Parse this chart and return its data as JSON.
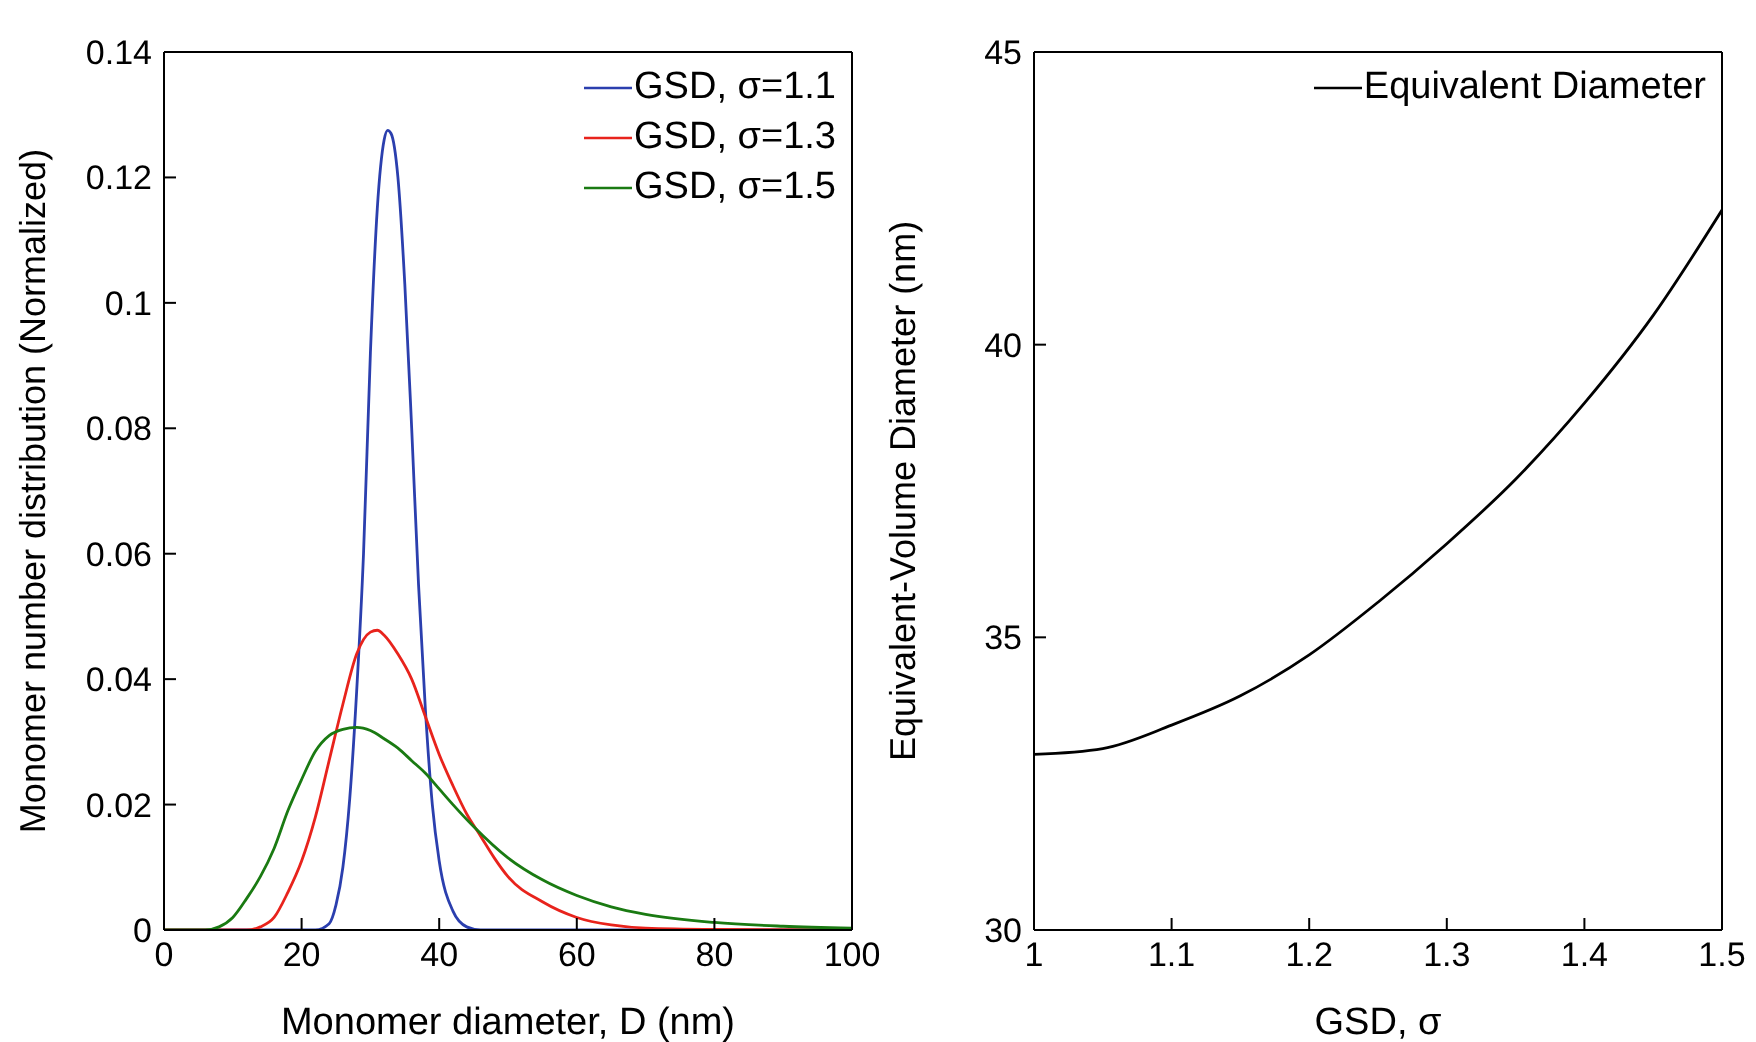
{
  "chart_data": [
    {
      "type": "line",
      "xlabel": "Monomer diameter, D (nm)",
      "ylabel": "Monomer number distribution (Normalized)",
      "xlim": [
        0,
        100
      ],
      "xticks": [
        0,
        20,
        40,
        60,
        80,
        100
      ],
      "ylim": [
        0,
        0.14
      ],
      "yticks": [
        0,
        0.02,
        0.04,
        0.06,
        0.08,
        0.1,
        0.12,
        0.14
      ],
      "legend": "top right",
      "marker": "none",
      "line_style": "solid",
      "series": [
        {
          "name": "GSD, σ=1.1",
          "color": "#2b3fae",
          "x": [
            0,
            22,
            24,
            25,
            26,
            27,
            28,
            29,
            30,
            31,
            32,
            32.5,
            33,
            34,
            35,
            36,
            37,
            38,
            39,
            40,
            42,
            44,
            46,
            100
          ],
          "values": [
            0,
            0,
            0.001,
            0.004,
            0.01,
            0.021,
            0.038,
            0.06,
            0.092,
            0.115,
            0.126,
            0.1275,
            0.127,
            0.12,
            0.103,
            0.08,
            0.055,
            0.035,
            0.02,
            0.011,
            0.003,
            0.0005,
            0,
            0
          ]
        },
        {
          "name": "GSD, σ=1.3",
          "color": "#e8231c",
          "x": [
            0,
            12,
            14,
            16,
            18,
            20,
            22,
            24,
            26,
            28,
            30,
            31,
            32,
            34,
            36,
            38,
            40,
            42,
            44,
            46,
            48,
            50,
            55,
            60,
            65,
            70,
            80,
            100
          ],
          "values": [
            0,
            0,
            0.0005,
            0.002,
            0.006,
            0.011,
            0.018,
            0.027,
            0.036,
            0.044,
            0.0475,
            0.0478,
            0.047,
            0.044,
            0.04,
            0.034,
            0.028,
            0.023,
            0.0185,
            0.015,
            0.0115,
            0.0085,
            0.0045,
            0.002,
            0.0008,
            0.0003,
            0.0001,
            0
          ]
        },
        {
          "name": "GSD, σ=1.5",
          "color": "#1a7a12",
          "x": [
            0,
            6,
            8,
            10,
            12,
            14,
            16,
            18,
            20,
            22,
            24,
            26,
            28,
            30,
            32,
            34,
            36,
            38,
            40,
            42,
            45,
            50,
            55,
            60,
            65,
            70,
            80,
            90,
            100
          ],
          "values": [
            0,
            0,
            0.0005,
            0.002,
            0.005,
            0.0085,
            0.013,
            0.019,
            0.024,
            0.0285,
            0.031,
            0.032,
            0.0323,
            0.0318,
            0.0305,
            0.029,
            0.027,
            0.025,
            0.0225,
            0.02,
            0.0165,
            0.0115,
            0.008,
            0.0055,
            0.0037,
            0.0025,
            0.0012,
            0.0006,
            0.0003
          ]
        }
      ]
    },
    {
      "type": "line",
      "xlabel": "GSD, σ",
      "ylabel": "Equivalent-Volume Diameter (nm)",
      "xlim": [
        1,
        1.5
      ],
      "xticks": [
        1,
        1.1,
        1.2,
        1.3,
        1.4,
        1.5
      ],
      "ylim": [
        30,
        45
      ],
      "yticks": [
        30,
        35,
        40,
        45
      ],
      "legend": "top right",
      "marker": "none",
      "line_style": "solid",
      "series": [
        {
          "name": "Equivalent Diameter",
          "color": "#000000",
          "x": [
            1,
            1.05,
            1.1,
            1.15,
            1.2,
            1.25,
            1.3,
            1.35,
            1.4,
            1.45,
            1.5
          ],
          "values": [
            33,
            33.1,
            33.5,
            34,
            34.7,
            35.6,
            36.6,
            37.7,
            39,
            40.5,
            42.3
          ]
        }
      ]
    }
  ]
}
